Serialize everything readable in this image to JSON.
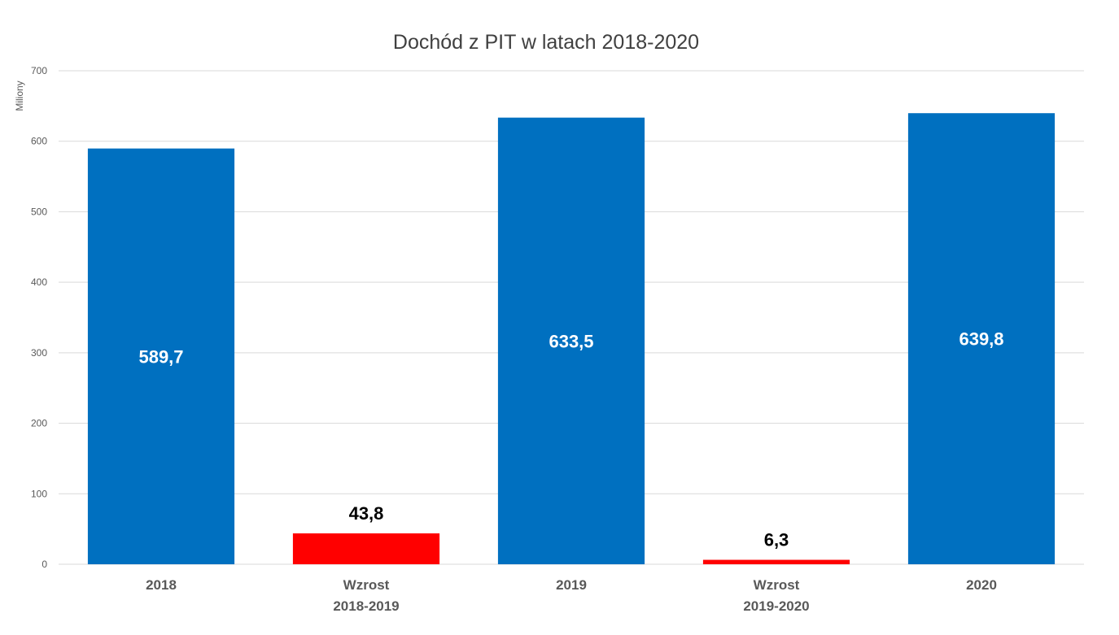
{
  "chart_data": {
    "type": "bar",
    "title": "Dochód z PIT w latach 2018-2020",
    "xlabel": "",
    "ylabel": "Miliony",
    "ylim": [
      0,
      700
    ],
    "yticks": [
      0,
      100,
      200,
      300,
      400,
      500,
      600,
      700
    ],
    "grid": true,
    "categories": [
      [
        "2018"
      ],
      [
        "Wzrost",
        "2018-2019"
      ],
      [
        "2019"
      ],
      [
        "Wzrost",
        "2019-2020"
      ],
      [
        "2020"
      ]
    ],
    "values": [
      589.7,
      43.8,
      633.5,
      6.3,
      639.8
    ],
    "data_labels": [
      "589,7",
      "43,8",
      "633,5",
      "6,3",
      "639,8"
    ],
    "bar_colors": [
      "#0070C0",
      "#FF0000",
      "#0070C0",
      "#FF0000",
      "#0070C0"
    ],
    "label_position": [
      "inside",
      "above",
      "inside",
      "above",
      "inside"
    ]
  }
}
